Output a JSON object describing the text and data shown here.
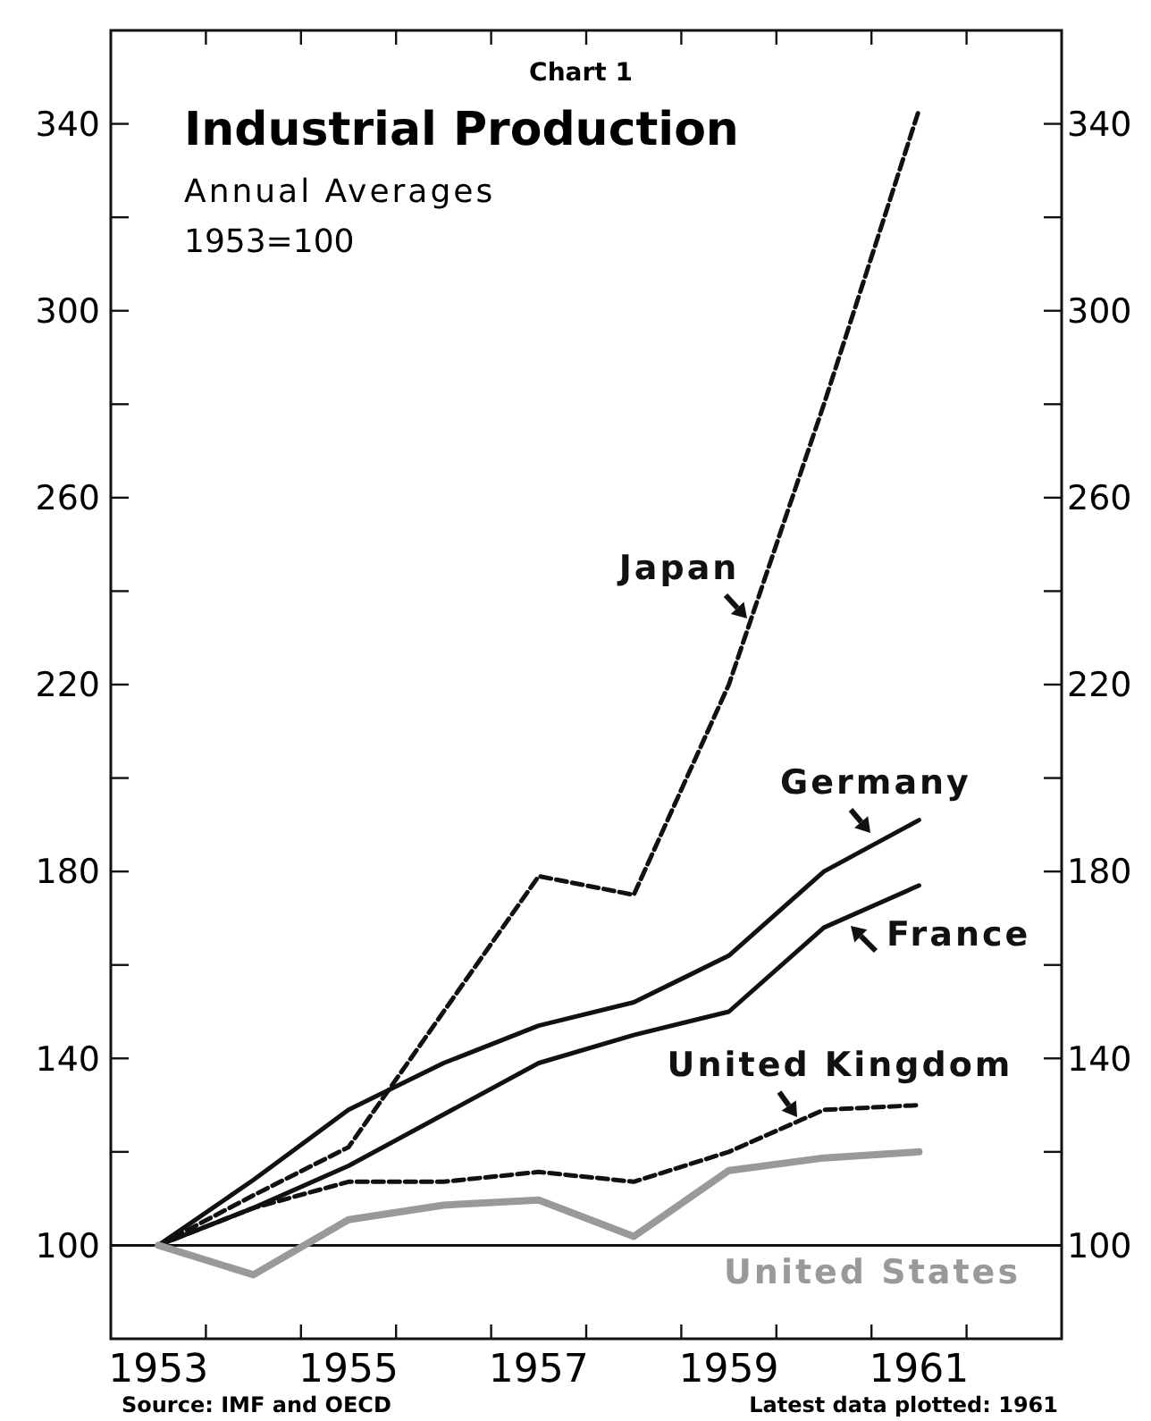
{
  "chart_data": {
    "type": "line",
    "title": "Industrial Production",
    "subtitle": "Annual Averages",
    "annotations": [
      "Chart 1",
      "1953=100",
      "Source: IMF and OECD",
      "Latest data plotted: 1961"
    ],
    "x": [
      1953,
      1954,
      1955,
      1956,
      1957,
      1958,
      1959,
      1960,
      1961
    ],
    "xlim": [
      1952.5,
      1962.5
    ],
    "xticks": [
      1953,
      1955,
      1957,
      1959,
      1961,
      {
        "value": 1953.5,
        "label": null
      },
      {
        "value": 1954.5,
        "label": null
      },
      {
        "value": 1955.5,
        "label": null
      },
      {
        "value": 1956.5,
        "label": null
      },
      {
        "value": 1957.5,
        "label": null
      },
      {
        "value": 1958.5,
        "label": null
      },
      {
        "value": 1959.5,
        "label": null
      },
      {
        "value": 1960.5,
        "label": null
      },
      {
        "value": 1961.5,
        "label": null
      }
    ],
    "ylim": [
      80,
      360
    ],
    "yticks": [
      100,
      140,
      180,
      220,
      260,
      300,
      340,
      {
        "value": 120,
        "label": null
      },
      {
        "value": 160,
        "label": null
      },
      {
        "value": 200,
        "label": null
      },
      {
        "value": 240,
        "label": null
      },
      {
        "value": 280,
        "label": null
      },
      {
        "value": 320,
        "label": null
      }
    ],
    "y2lim": [
      80,
      360
    ],
    "y2ticks": [
      100,
      140,
      180,
      220,
      260,
      300,
      340,
      {
        "value": 120,
        "label": null
      },
      {
        "value": 160,
        "label": null
      },
      {
        "value": 200,
        "label": null
      },
      {
        "value": 240,
        "label": null
      },
      {
        "value": 280,
        "label": null
      },
      {
        "value": 320,
        "label": null
      }
    ],
    "grid": false,
    "ref_lines": [
      {
        "axis": "y",
        "value": 100,
        "color": "#111111"
      }
    ],
    "series": [
      {
        "name": "Japan",
        "color": "#111111",
        "line_style": "dashed",
        "values": [
          100,
          110.7,
          121,
          150,
          179,
          175,
          220,
          280,
          343
        ]
      },
      {
        "name": "Germany",
        "color": "#111111",
        "line_style": "solid",
        "values": [
          100,
          114,
          129,
          139,
          147,
          152,
          162,
          180,
          191
        ]
      },
      {
        "name": "France",
        "color": "#111111",
        "line_style": "solid",
        "values": [
          100,
          108,
          117,
          128,
          139,
          145,
          150,
          168,
          177
        ]
      },
      {
        "name": "United Kingdom",
        "color": "#111111",
        "line_style": "dashed",
        "values": [
          100,
          108,
          113.6,
          113.6,
          115.7,
          113.6,
          120,
          129,
          130
        ]
      },
      {
        "name": "United States",
        "color": "#999999",
        "line_style": "solid",
        "values": [
          100,
          93.7,
          105.5,
          108.6,
          109.7,
          101.9,
          116,
          118.7,
          120
        ]
      }
    ]
  }
}
